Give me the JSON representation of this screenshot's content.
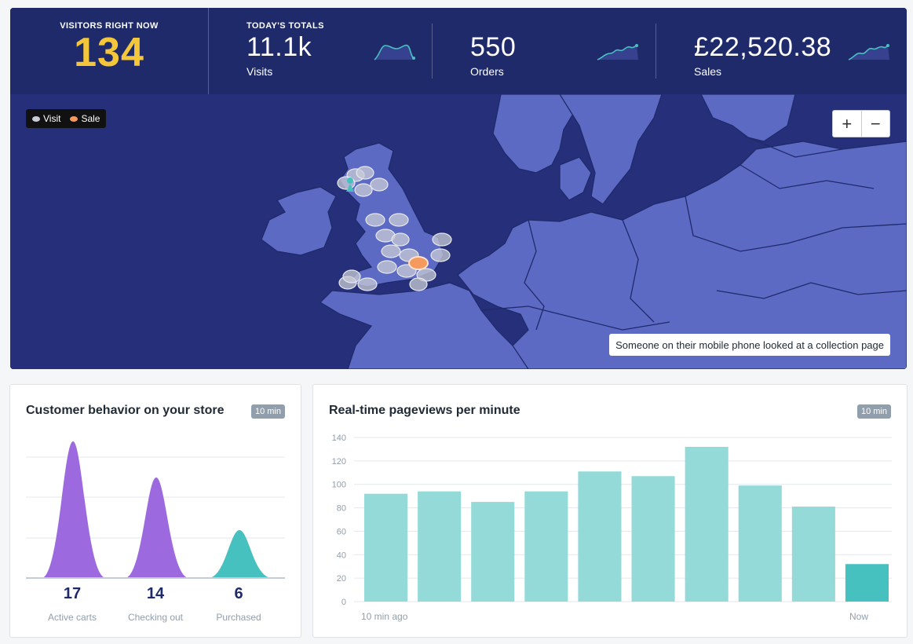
{
  "header": {
    "visitors_label": "VISITORS RIGHT NOW",
    "visitors_value": "134",
    "totals_label": "TODAY'S TOTALS",
    "stats": [
      {
        "value": "11.1k",
        "caption": "Visits"
      },
      {
        "value": "550",
        "caption": "Orders"
      },
      {
        "value": "£22,520.38",
        "caption": "Sales"
      }
    ]
  },
  "map": {
    "legend": [
      {
        "label": "Visit",
        "color": "#c9ccd6"
      },
      {
        "label": "Sale",
        "color": "#f49a5f"
      }
    ],
    "zoom_in": "+",
    "zoom_out": "−",
    "notification": "Someone on their mobile phone looked at a collection page"
  },
  "behavior": {
    "title": "Customer behavior on your store",
    "badge": "10 min",
    "items": [
      {
        "value": "17",
        "label": "Active carts",
        "color": "#9c6ade"
      },
      {
        "value": "14",
        "label": "Checking out",
        "color": "#9c6ade"
      },
      {
        "value": "6",
        "label": "Purchased",
        "color": "#47c1bf"
      }
    ]
  },
  "pageviews": {
    "title": "Real-time pageviews per minute",
    "badge": "10 min",
    "x_start": "10 min ago",
    "x_end": "Now",
    "chart_data": {
      "type": "bar",
      "categories": [
        "1",
        "2",
        "3",
        "4",
        "5",
        "6",
        "7",
        "8",
        "9",
        "10"
      ],
      "values": [
        92,
        94,
        85,
        94,
        111,
        107,
        132,
        99,
        81,
        32
      ],
      "ylim": [
        0,
        140
      ],
      "yticks": [
        0,
        20,
        40,
        60,
        80,
        100,
        120,
        140
      ],
      "bar_color": "#93dad8",
      "last_bar_color": "#47c1bf"
    }
  },
  "colors": {
    "header_bg": "#1f2a6b",
    "accent_yellow": "#f4c73b",
    "sea": "#26307a",
    "land": "#5c6ac4"
  }
}
